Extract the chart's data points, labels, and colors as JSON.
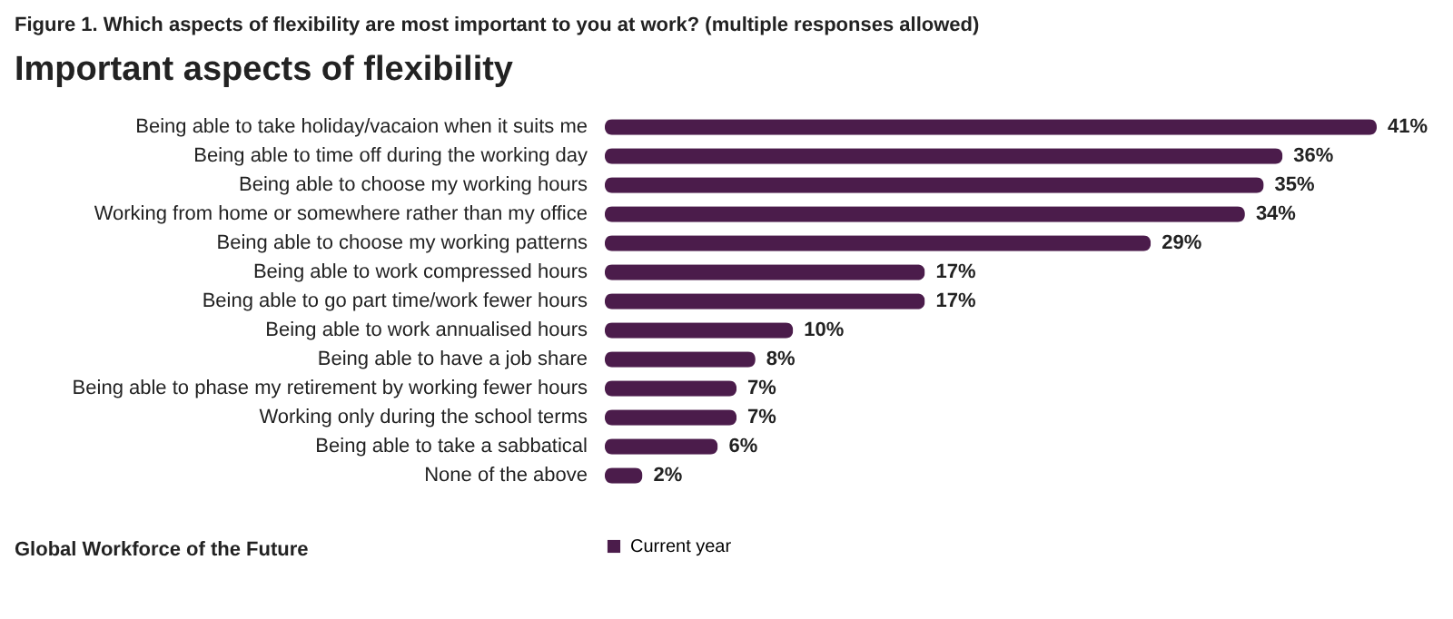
{
  "chart_data": {
    "type": "bar",
    "orientation": "horizontal",
    "title": "Figure 1. Which aspects of flexibility are most important to you at work? (multiple responses allowed)",
    "subtitle": "Important aspects of flexibility",
    "categories": [
      "Being able to take holiday/vacaion when it suits me",
      "Being able to time off during the working day",
      "Being able to choose my working hours",
      "Working from home or somewhere rather than my office",
      "Being able to choose my working patterns",
      "Being able to work compressed hours",
      "Being able to go part time/work fewer hours",
      "Being able to work annualised hours",
      "Being able to have a job share",
      "Being able to phase my retirement by working fewer hours",
      "Working only during the school terms",
      "Being able to take a sabbatical",
      "None of the above"
    ],
    "series": [
      {
        "name": "Current year",
        "color": "#4b1c4b",
        "values": [
          41,
          36,
          35,
          34,
          29,
          17,
          17,
          10,
          8,
          7,
          7,
          6,
          2
        ],
        "value_labels": [
          "41%",
          "36%",
          "35%",
          "34%",
          "29%",
          "17%",
          "17%",
          "10%",
          "8%",
          "7%",
          "7%",
          "6%",
          "2%"
        ]
      }
    ],
    "legend": "bottom",
    "annotations": [
      "Global Workforce of the Future"
    ]
  }
}
